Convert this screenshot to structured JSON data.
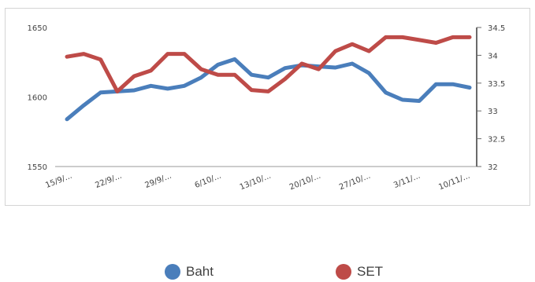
{
  "chart_data": {
    "type": "line",
    "title": "",
    "xlabel": "",
    "ylabel": "",
    "x_tick_labels": [
      "15/9/...",
      "22/9/...",
      "29/9/...",
      "6/10/...",
      "13/10/...",
      "20/10/...",
      "27/10/...",
      "3/11/...",
      "10/11/..."
    ],
    "left_axis": {
      "min": 1550,
      "max": 1650,
      "ticks": [
        1550,
        1600,
        1650
      ],
      "tick_labels": [
        "1550",
        "1600",
        "1650"
      ]
    },
    "right_axis": {
      "min": 32,
      "max": 34.5,
      "ticks": [
        32,
        32.5,
        33,
        33.5,
        34,
        34.5
      ],
      "tick_labels": [
        "32",
        "32.5",
        "33",
        "33.5",
        "34",
        "34.5"
      ]
    },
    "series": [
      {
        "name": "Baht",
        "axis": "right",
        "color": "#4a7ebb",
        "values": [
          32.85,
          33.1,
          33.33,
          33.35,
          33.37,
          33.45,
          33.4,
          33.45,
          33.6,
          33.83,
          33.93,
          33.65,
          33.6,
          33.77,
          33.82,
          33.8,
          33.78,
          33.85,
          33.68,
          33.33,
          33.2,
          33.18,
          33.48,
          33.48,
          33.42
        ]
      },
      {
        "name": "SET",
        "axis": "left",
        "color": "#be4b48",
        "values": [
          1629,
          1631,
          1627,
          1604,
          1615,
          1619,
          1631,
          1631,
          1620,
          1616,
          1616,
          1605,
          1604,
          1613,
          1624,
          1620,
          1633,
          1638,
          1633,
          1643,
          1643,
          1641,
          1639,
          1643,
          1643
        ]
      }
    ],
    "legend": {
      "placement": "bottom-center"
    }
  }
}
